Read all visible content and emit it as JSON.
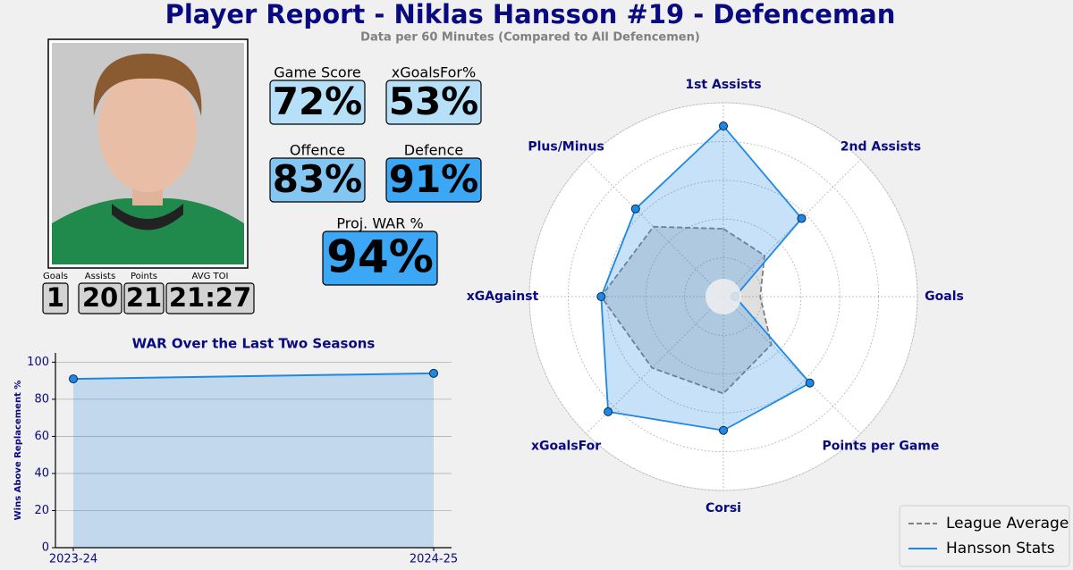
{
  "title": "Player Report - Niklas Hansson #19 - Defenceman",
  "subtitle": "Data per 60 Minutes (Compared to All Defencemen)",
  "stats": [
    {
      "label": "Game Score",
      "value": "72%",
      "color": "#b5e0f7"
    },
    {
      "label": "xGoalsFor%",
      "value": "53%",
      "color": "#b5e0f7"
    },
    {
      "label": "Offence",
      "value": "83%",
      "color": "#82c6f1"
    },
    {
      "label": "Defence",
      "value": "91%",
      "color": "#3ba7f5"
    },
    {
      "label": "Proj. WAR %",
      "value": "94%",
      "color": "#3ba7f5"
    }
  ],
  "counts": [
    {
      "label": "Goals",
      "value": "1"
    },
    {
      "label": "Assists",
      "value": "20"
    },
    {
      "label": "Points",
      "value": "21"
    },
    {
      "label": "AVG TOI",
      "value": "21:27"
    }
  ],
  "chart_data": [
    {
      "type": "line",
      "title": "WAR Over the Last Two Seasons",
      "ylabel": "Wins Above Replacement %",
      "categories": [
        "2023-24",
        "2024-25"
      ],
      "series": [
        {
          "values": [
            91,
            94
          ],
          "color": "#1e88e5"
        }
      ],
      "ylim": [
        0,
        105
      ],
      "yticks": [
        0,
        20,
        40,
        60,
        80,
        100
      ],
      "grid": true,
      "fill": true
    },
    {
      "type": "radar",
      "categories": [
        "1st Assists",
        "2nd Assists",
        "Goals",
        "Points per Game",
        "Corsi",
        "xGoalsFor",
        "xGAgainst",
        "Plus/Minus"
      ],
      "series": [
        {
          "name": "League Average",
          "color": "#808080",
          "dashed": true,
          "markers": false,
          "values": [
            35,
            30,
            19,
            35,
            50,
            52,
            63,
            51
          ]
        },
        {
          "name": "Hansson Stats",
          "color": "#1e88e5",
          "dashed": false,
          "markers": true,
          "values": [
            88,
            57,
            6,
            63,
            69,
            84,
            63,
            64
          ]
        }
      ],
      "rlim": [
        0,
        100
      ],
      "rticks": [
        20,
        40,
        60,
        80,
        100
      ],
      "legend": "lower right"
    }
  ]
}
